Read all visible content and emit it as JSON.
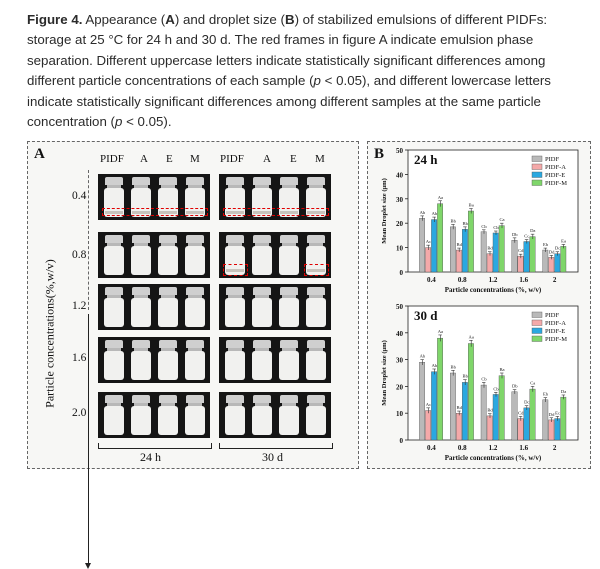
{
  "caption": {
    "label": "Figure 4.",
    "pre_A": " Appearance (",
    "A": "A",
    "mid": ") and droplet size (",
    "B": "B",
    "post_B": ") of stabilized emulsions of different PIDFs: storage at 25 °C for 24 h and 30 d. The red frames in figure A indicate emulsion phase separation. Different uppercase letters indicate statistically significant differences among different particle concentrations of each sample (",
    "p1": "p",
    "lt1": " < 0.05), and different lowercase letters indicate statistically significant differences among different samples at the same particle concentration (",
    "p2": "p",
    "lt2": " < 0.05)."
  },
  "panel_a": {
    "letter": "A",
    "headers": [
      "PIDF",
      "A",
      "E",
      "M"
    ],
    "concentrations": [
      "0.4",
      "0.8",
      "1.2",
      "1.6",
      "2.0"
    ],
    "y_label": "Particle concentrations(%,w/v)",
    "time_labels": [
      "24 h",
      "30 d"
    ],
    "separated_rows_24h": [
      "0.4"
    ],
    "separated_rows_30d": [
      "0.4",
      "0.8"
    ]
  },
  "panel_b": {
    "letter": "B"
  },
  "colors": {
    "PIDF": "#b9b9b9",
    "PIDF-A": "#f4a9a9",
    "PIDF-E": "#2aa8e0",
    "PIDF-M": "#7fd66a",
    "separation_frame": "#e00000"
  },
  "chart_data": [
    {
      "type": "bar",
      "title": "24 h",
      "categories": [
        "0.4",
        "0.8",
        "1.2",
        "1.6",
        "2"
      ],
      "xlabel": "Particle concentrations (%, w/v)",
      "ylabel": "Mean Droplet size (μm)",
      "ylim": [
        0,
        50
      ],
      "yticks": [
        0,
        10,
        20,
        30,
        40,
        50
      ],
      "legend_position": "top-right",
      "series": [
        {
          "name": "PIDF",
          "values": [
            22,
            18.5,
            16.5,
            13,
            9
          ],
          "errors": [
            1,
            1,
            0.8,
            1,
            0.8
          ],
          "labels": [
            "Ab",
            "Bb",
            "Cb",
            "Db",
            "Eb"
          ]
        },
        {
          "name": "PIDF-A",
          "values": [
            10,
            9,
            7.5,
            6.5,
            6
          ],
          "errors": [
            1,
            0.8,
            0.8,
            0.8,
            0.8
          ],
          "labels": [
            "Ac",
            "Bd",
            "Bd",
            "Cd",
            "Dd"
          ]
        },
        {
          "name": "PIDF-E",
          "values": [
            21.5,
            17.5,
            16,
            12.5,
            7.5
          ],
          "errors": [
            1,
            1,
            0.8,
            0.8,
            0.8
          ],
          "labels": [
            "Ab",
            "Bb",
            "Cb",
            "Cc",
            "Dc"
          ]
        },
        {
          "name": "PIDF-M",
          "values": [
            28,
            25,
            19,
            14.5,
            10.5
          ],
          "errors": [
            1.2,
            1,
            1,
            1,
            0.8
          ],
          "labels": [
            "Aa",
            "Ba",
            "Ca",
            "Da",
            "Ea"
          ]
        }
      ]
    },
    {
      "type": "bar",
      "title": "30 d",
      "categories": [
        "0.4",
        "0.8",
        "1.2",
        "1.6",
        "2"
      ],
      "xlabel": "Particle concentrations (%, w/v)",
      "ylabel": "Mean Droplet size (μm)",
      "ylim": [
        0,
        50
      ],
      "yticks": [
        0,
        10,
        20,
        30,
        40,
        50
      ],
      "legend_position": "top-right",
      "series": [
        {
          "name": "PIDF",
          "values": [
            29,
            25,
            20.5,
            18,
            15
          ],
          "errors": [
            1,
            1,
            1,
            0.8,
            0.8
          ],
          "labels": [
            "Ab",
            "Bb",
            "Cb",
            "Db",
            "Eb"
          ]
        },
        {
          "name": "PIDF-A",
          "values": [
            11,
            10,
            9,
            8,
            7.5
          ],
          "errors": [
            1,
            0.8,
            0.8,
            0.8,
            0.8
          ],
          "labels": [
            "Ac",
            "Bd",
            "Bd",
            "Cd",
            "Dd"
          ]
        },
        {
          "name": "PIDF-E",
          "values": [
            25.5,
            21.5,
            17,
            12,
            8
          ],
          "errors": [
            1,
            1,
            0.8,
            0.8,
            0.8
          ],
          "labels": [
            "Ab",
            "Bb",
            "Cb",
            "Dc",
            "Ec"
          ]
        },
        {
          "name": "PIDF-M",
          "values": [
            38,
            36,
            24,
            19,
            16
          ],
          "errors": [
            1.2,
            1.2,
            1,
            1,
            0.8
          ],
          "labels": [
            "Aa",
            "Aa",
            "Ba",
            "Ca",
            "Da"
          ]
        }
      ]
    }
  ]
}
